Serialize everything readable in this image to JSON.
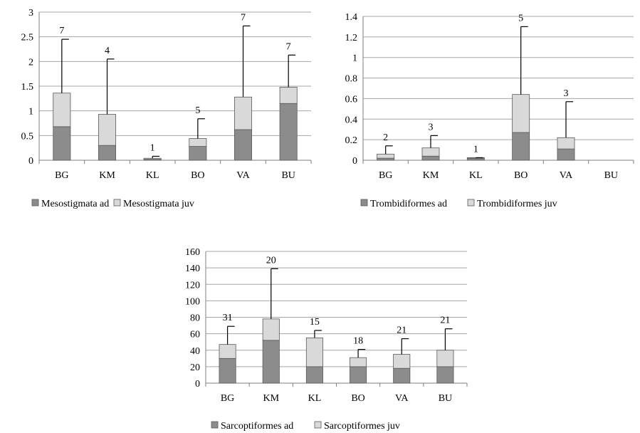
{
  "chart_data": [
    {
      "type": "bar",
      "stacked": true,
      "categories": [
        "BG",
        "KM",
        "KL",
        "BO",
        "VA",
        "BU"
      ],
      "ylim": [
        0,
        3
      ],
      "yticks": [
        "0",
        "0.5",
        "1",
        "1.5",
        "2",
        "2.5",
        "3"
      ],
      "grid": true,
      "legend": "bottom",
      "series": [
        {
          "name": "Mesostigmata  ad",
          "values": [
            0.68,
            0.3,
            0.02,
            0.28,
            0.62,
            1.15
          ],
          "color": "#8c8c8c"
        },
        {
          "name": "Mesostigmata  juv",
          "values": [
            0.68,
            0.63,
            0.02,
            0.16,
            0.66,
            0.33
          ],
          "color": "#d9d9d9"
        }
      ],
      "error_top": [
        2.45,
        2.05,
        0.08,
        0.84,
        2.72,
        2.13
      ],
      "labels": [
        "7",
        "4",
        "1",
        "5",
        "7",
        "7"
      ]
    },
    {
      "type": "bar",
      "stacked": true,
      "categories": [
        "BG",
        "KM",
        "KL",
        "BO",
        "VA",
        "BU"
      ],
      "ylim": [
        0,
        1.4
      ],
      "yticks": [
        "0",
        "0.2",
        "0.4",
        "0.6",
        "0.8",
        "1",
        "1.2",
        "1.4"
      ],
      "grid": true,
      "legend": "bottom",
      "series": [
        {
          "name": "Trombidiformes ad",
          "values": [
            0.02,
            0.04,
            0.02,
            0.27,
            0.11,
            0
          ],
          "color": "#8c8c8c"
        },
        {
          "name": "Trombidiformes juv",
          "values": [
            0.04,
            0.08,
            0.005,
            0.37,
            0.11,
            0
          ],
          "color": "#d9d9d9"
        }
      ],
      "error_top": [
        0.14,
        0.24,
        0.025,
        1.3,
        0.57,
        null
      ],
      "labels": [
        "2",
        "3",
        "1",
        "5",
        "3",
        ""
      ]
    },
    {
      "type": "bar",
      "stacked": true,
      "categories": [
        "BG",
        "KM",
        "KL",
        "BO",
        "VA",
        "BU"
      ],
      "ylim": [
        0,
        160
      ],
      "yticks": [
        "0",
        "20",
        "40",
        "60",
        "80",
        "100",
        "120",
        "140",
        "160"
      ],
      "grid": true,
      "legend": "bottom",
      "series": [
        {
          "name": "Sarcoptiformes ad",
          "values": [
            30,
            52,
            20,
            20,
            18,
            20
          ],
          "color": "#8c8c8c"
        },
        {
          "name": "Sarcoptiformes juv",
          "values": [
            17,
            26,
            35,
            11,
            17,
            20
          ],
          "color": "#d9d9d9"
        }
      ],
      "error_top": [
        69,
        139,
        64,
        41,
        54,
        66
      ],
      "labels": [
        "31",
        "20",
        "15",
        "18",
        "21",
        "21"
      ]
    }
  ]
}
